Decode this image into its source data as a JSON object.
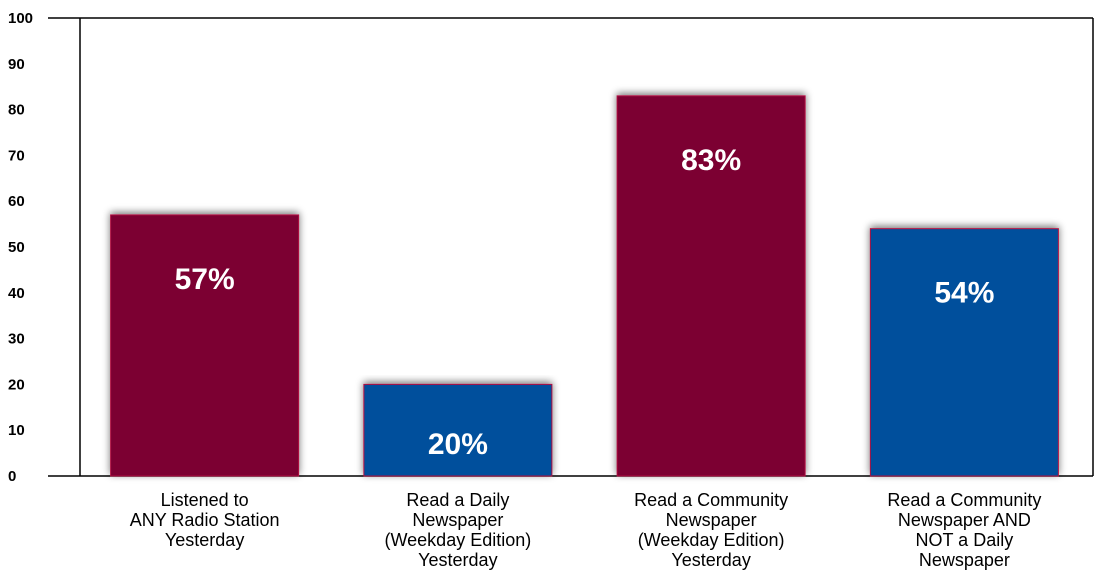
{
  "chart_data": {
    "type": "bar",
    "categories": [
      "Listened to ANY Radio Station Yesterday",
      "Read a Daily Newspaper (Weekday Edition) Yesterday",
      "Read a Community Newspaper (Weekday Edition) Yesterday",
      "Read a Community Newspaper AND NOT a Daily Newspaper"
    ],
    "category_lines": [
      [
        "Listened to",
        "ANY Radio Station",
        "Yesterday"
      ],
      [
        "Read a Daily",
        "Newspaper",
        "(Weekday Edition)",
        "Yesterday"
      ],
      [
        "Read a Community",
        "Newspaper",
        "(Weekday Edition)",
        "Yesterday"
      ],
      [
        "Read a Community",
        "Newspaper AND",
        "NOT a Daily",
        "Newspaper"
      ]
    ],
    "values": [
      57,
      20,
      83,
      54
    ],
    "data_labels": [
      "57%",
      "20%",
      "83%",
      "54%"
    ],
    "bar_colors": [
      "#7b0032",
      "#00509c",
      "#7b0032",
      "#00509c"
    ],
    "title": "",
    "xlabel": "",
    "ylabel": "",
    "ylim": [
      0,
      100
    ],
    "yticks": [
      0,
      10,
      20,
      30,
      40,
      50,
      60,
      70,
      80,
      90,
      100
    ],
    "grid": false,
    "legend": "none"
  }
}
